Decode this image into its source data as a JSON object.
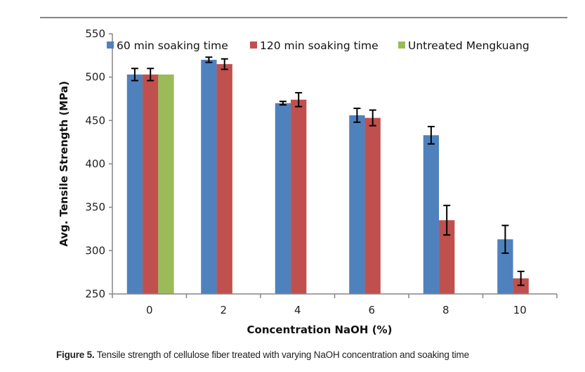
{
  "chart_data": {
    "type": "bar",
    "title": "",
    "xlabel": "Concentration NaOH (%)",
    "ylabel": "Avg. Tensile Strength (MPa)",
    "ylim": [
      250,
      550
    ],
    "yticks": [
      250,
      300,
      350,
      400,
      450,
      500,
      550
    ],
    "categories": [
      "0",
      "2",
      "4",
      "6",
      "8",
      "10"
    ],
    "legend_position": "top",
    "series": [
      {
        "name": "60 min soaking time",
        "color": "#4f81bd",
        "values": [
          503,
          520,
          470,
          456,
          433,
          313
        ],
        "errors": [
          7,
          3,
          2,
          8,
          10,
          16
        ]
      },
      {
        "name": "120 min soaking time",
        "color": "#c0504d",
        "values": [
          503,
          515,
          474,
          453,
          335,
          268
        ],
        "errors": [
          7,
          6,
          8,
          9,
          17,
          8
        ]
      },
      {
        "name": "Untreated Mengkuang",
        "color": "#9bbb59",
        "values": [
          503,
          null,
          null,
          null,
          null,
          null
        ],
        "errors": [
          null,
          null,
          null,
          null,
          null,
          null
        ]
      }
    ]
  },
  "caption": {
    "label": "Figure 5.",
    "text": " Tensile strength of cellulose fiber treated with varying NaOH concentration and soaking time"
  }
}
